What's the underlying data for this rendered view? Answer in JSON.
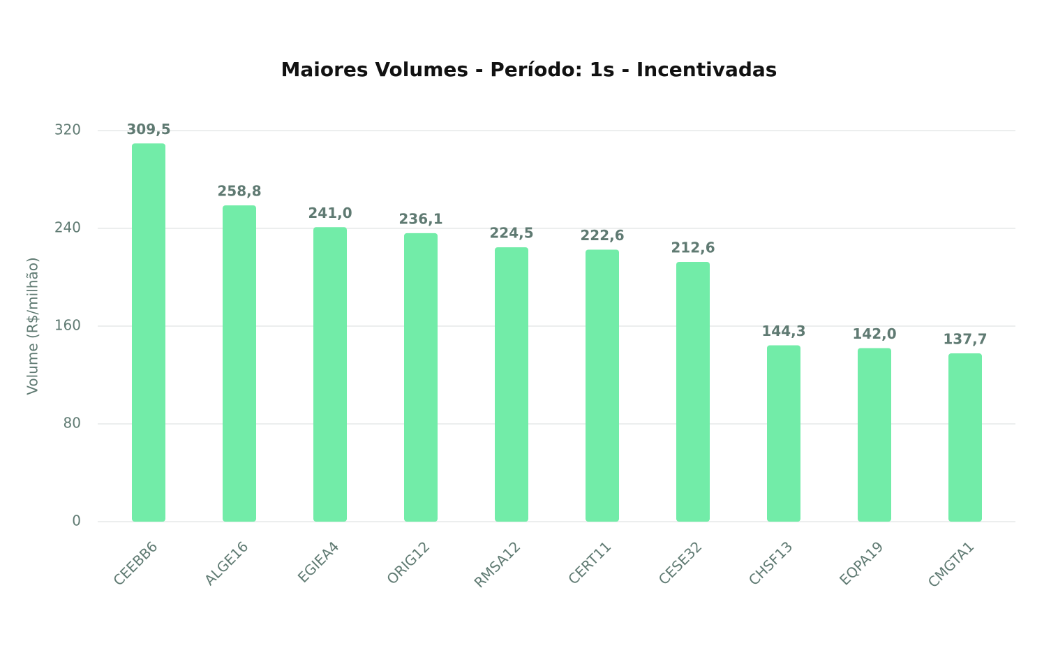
{
  "chart_data": {
    "type": "bar",
    "title": "Maiores Volumes - Período: 1s - Incentivadas",
    "y_label": "Volume (R$/milhão)",
    "categories": [
      "CEEBB6",
      "ALGE16",
      "EGIEA4",
      "ORIG12",
      "RMSA12",
      "CERT11",
      "CESE32",
      "CHSF13",
      "EQPA19",
      "CMGTA1"
    ],
    "values": [
      309.5,
      258.8,
      241.0,
      236.1,
      224.5,
      222.6,
      212.6,
      144.3,
      142.0,
      137.7
    ],
    "value_labels": [
      "309,5",
      "258,8",
      "241,0",
      "236,1",
      "224,5",
      "222,6",
      "212,6",
      "144,3",
      "142,0",
      "137,7"
    ],
    "color": "#72eca8",
    "ylim": [
      0,
      320
    ],
    "yticks": [
      0,
      80,
      160,
      240,
      320
    ],
    "grid": true
  }
}
